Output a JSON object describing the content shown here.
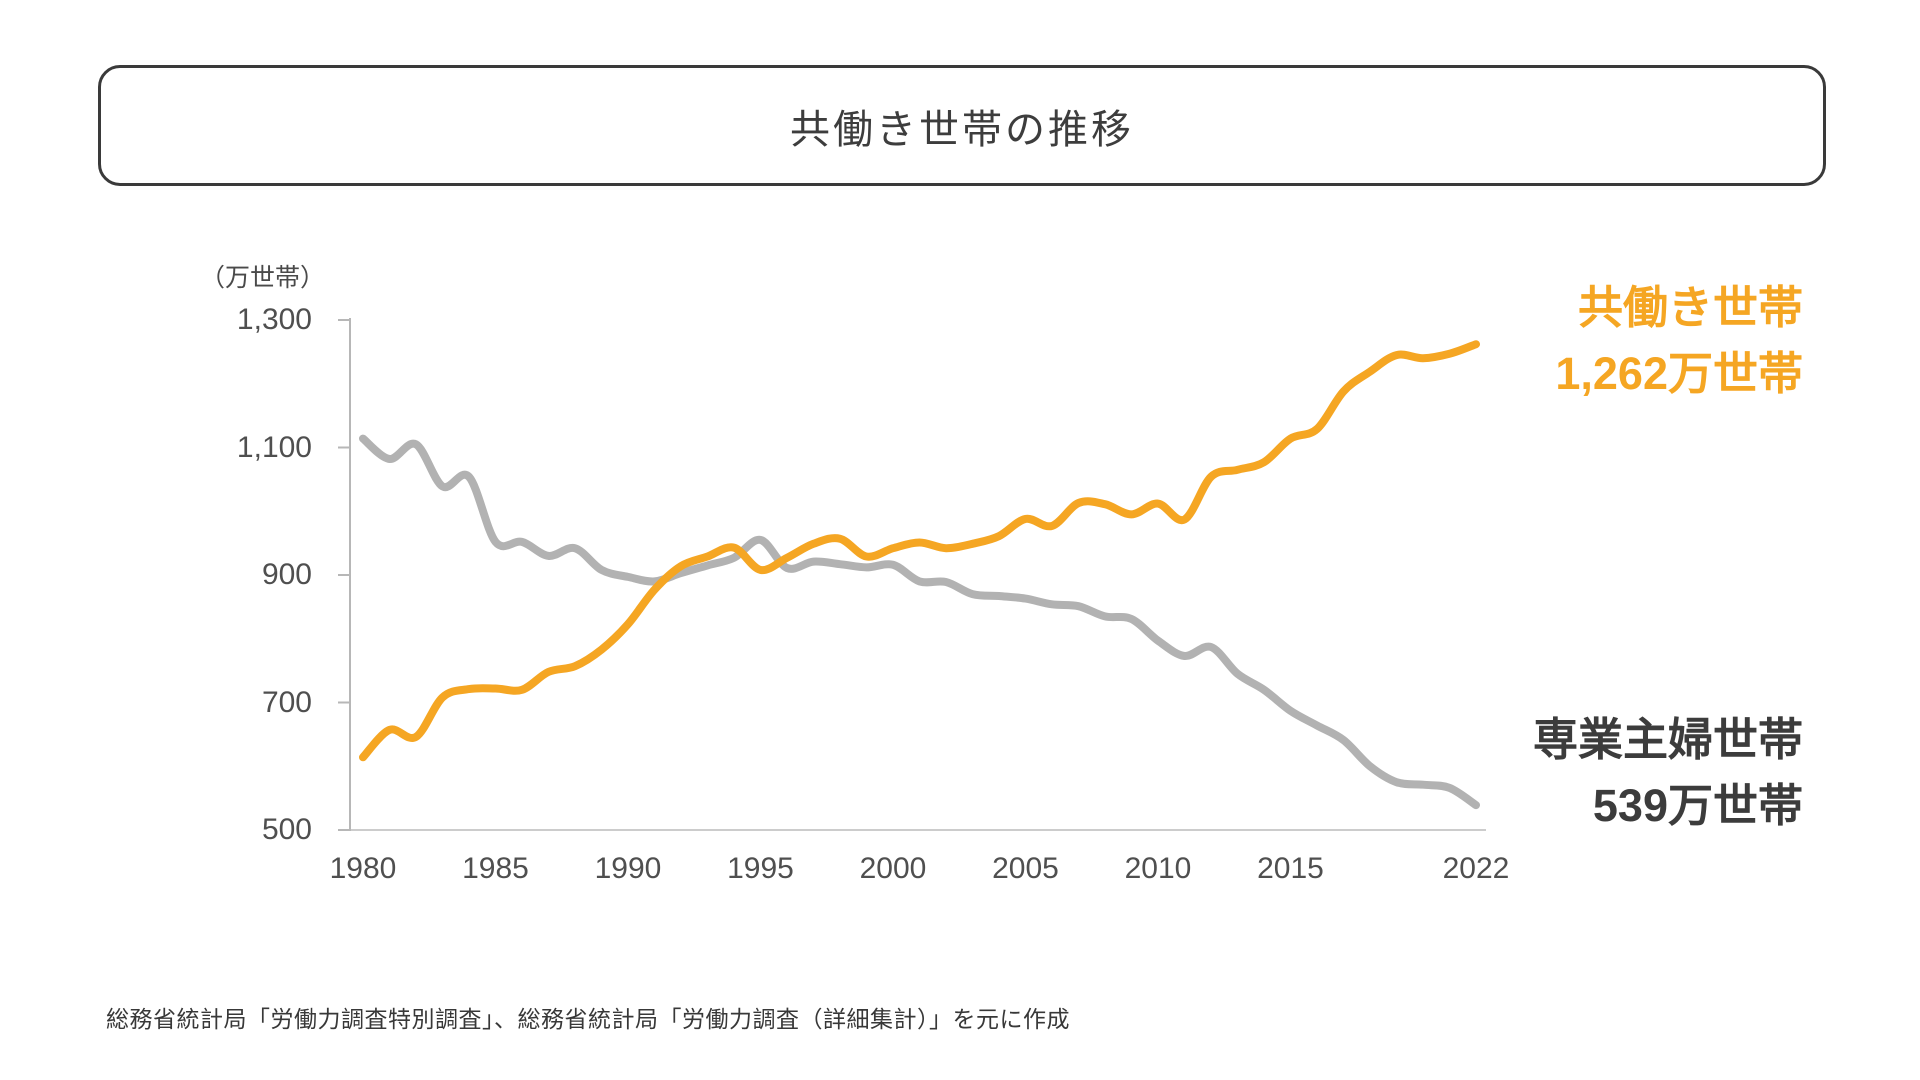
{
  "title": {
    "text": "共働き世帯の推移"
  },
  "unit_label": "（万世帯）",
  "annotations": {
    "dual_income": {
      "line1": "共働き世帯",
      "line2": "1,262万世帯",
      "color": "#f5a623"
    },
    "housewife": {
      "line1": "専業主婦世帯",
      "line2": "539万世帯",
      "color": "#3c3c3c"
    }
  },
  "source": "総務省統計局「労働力調査特別調査」、総務省統計局「労働力調査（詳細集計）」を元に作成",
  "chart_data": {
    "type": "line",
    "smoothed": true,
    "grid": false,
    "legend_position": "right-annotations",
    "title": "共働き世帯の推移",
    "xlabel": "",
    "ylabel": "万世帯",
    "ylim": [
      500,
      1300
    ],
    "x_start_year": 1980,
    "x_end_year": 2022,
    "y_ticks": [
      500,
      700,
      900,
      1100,
      1300
    ],
    "y_tick_labels": [
      "500",
      "700",
      "900",
      "1,100",
      "1,300"
    ],
    "x_tick_years": [
      1980,
      1985,
      1990,
      1995,
      2000,
      2005,
      2010,
      2015,
      2022
    ],
    "x_tick_labels": [
      "1980",
      "1985",
      "1990",
      "1995",
      "2000",
      "2005",
      "2010",
      "2015",
      "2022"
    ],
    "x": [
      1980,
      1981,
      1982,
      1983,
      1984,
      1985,
      1986,
      1987,
      1988,
      1989,
      1990,
      1991,
      1992,
      1993,
      1994,
      1995,
      1996,
      1997,
      1998,
      1999,
      2000,
      2001,
      2002,
      2003,
      2004,
      2005,
      2006,
      2007,
      2008,
      2009,
      2010,
      2011,
      2012,
      2013,
      2014,
      2015,
      2016,
      2017,
      2018,
      2019,
      2020,
      2021,
      2022
    ],
    "series": [
      {
        "name": "専業主婦世帯",
        "color": "#b2b2b2",
        "end_value_label": "539万世帯",
        "values": [
          1114,
          1082,
          1105,
          1039,
          1054,
          952,
          952,
          930,
          942,
          908,
          897,
          890,
          903,
          915,
          927,
          955,
          911,
          921,
          917,
          912,
          916,
          890,
          889,
          870,
          867,
          863,
          854,
          851,
          835,
          831,
          797,
          773,
          787,
          745,
          720,
          687,
          664,
          641,
          600,
          575,
          571,
          566,
          539
        ]
      },
      {
        "name": "共働き世帯",
        "color": "#f5a623",
        "end_value_label": "1,262万世帯",
        "values": [
          614,
          657,
          646,
          708,
          721,
          722,
          720,
          748,
          757,
          783,
          823,
          877,
          914,
          929,
          943,
          908,
          927,
          949,
          957,
          929,
          942,
          951,
          942,
          949,
          961,
          988,
          977,
          1013,
          1011,
          995,
          1012,
          987,
          1054,
          1065,
          1077,
          1114,
          1129,
          1188,
          1219,
          1245,
          1240,
          1247,
          1262
        ]
      }
    ],
    "axis_color": "#b7b7b7",
    "baseline_color": "#cccccc"
  }
}
